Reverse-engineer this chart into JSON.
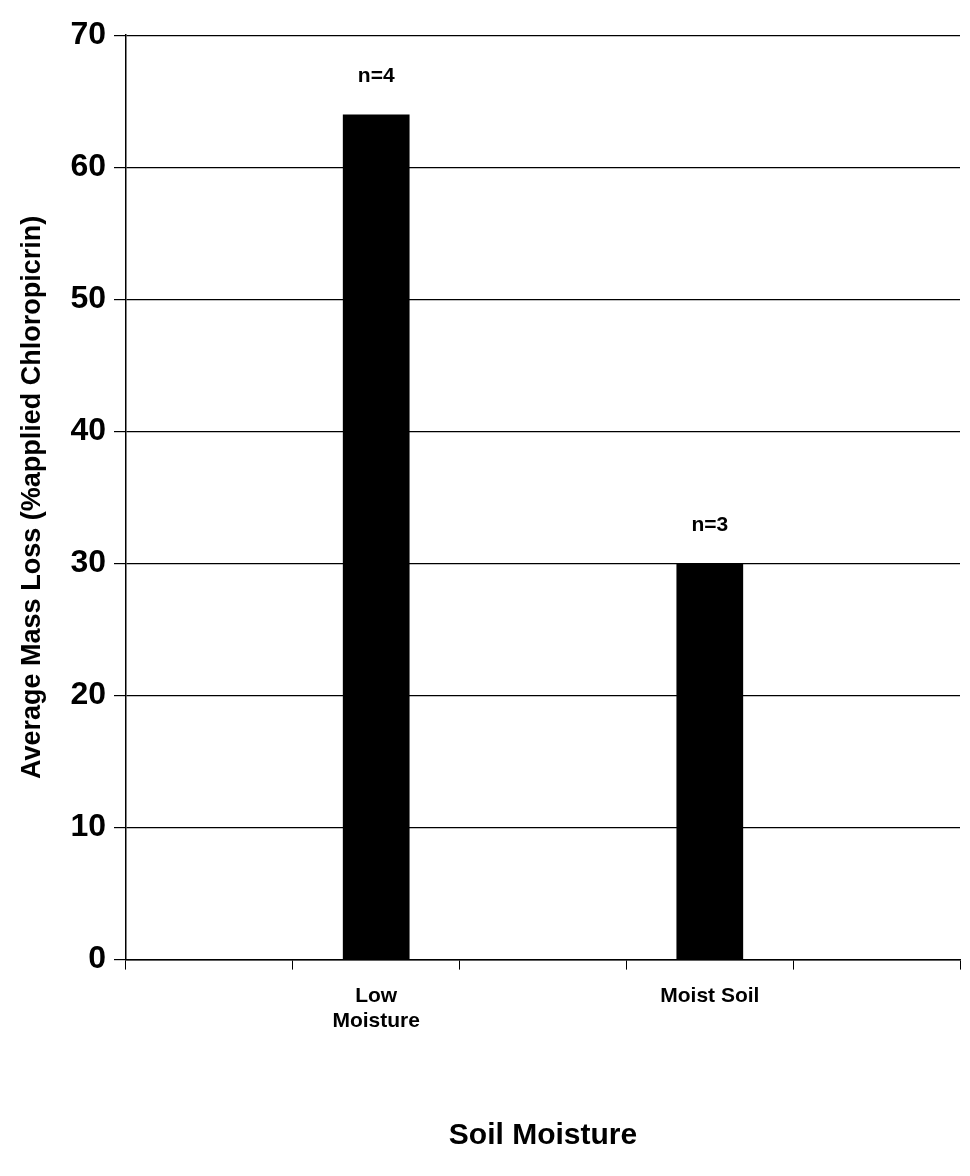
{
  "chart_data": {
    "type": "bar",
    "xlabel": "Soil Moisture",
    "ylabel": "Average Mass Loss (%applied Chloropicrin)",
    "categories": [
      null,
      "Low Moisture",
      null,
      "Moist Soil",
      null
    ],
    "values": [
      null,
      64,
      null,
      30,
      null
    ],
    "annotations": [
      {
        "text": "n=4",
        "x": "Low Moisture",
        "y": 64
      },
      {
        "text": "n=3",
        "x": "Moist Soil",
        "y": 30
      }
    ],
    "color": "#000000",
    "ylim": [
      0,
      70
    ],
    "yticks": [
      0,
      10,
      20,
      30,
      40,
      50,
      60,
      70
    ],
    "grid": "y",
    "legend": false
  }
}
